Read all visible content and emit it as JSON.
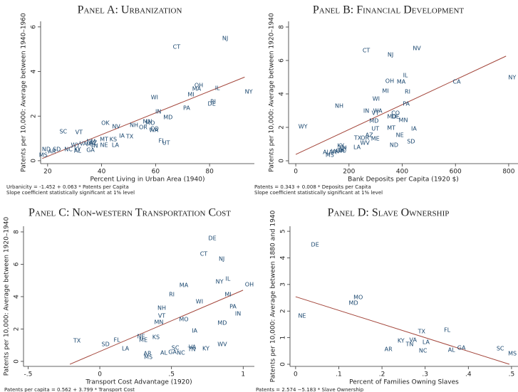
{
  "chart_data": [
    {
      "type": "scatter",
      "title": "Panel A: Urbanization",
      "xlabel": "Percent Living in Urban Area (1940)",
      "ylabel": "Patents per 10,000: Average between 1940–1960",
      "notes": [
        "Urbanicity = -1.452 + 0.063 * Patents per Capita",
        "Slope coefficient statistically significant at 1% level"
      ],
      "color": "#1a476f",
      "labels": [
        "NJ",
        "CT",
        "NY",
        "OH",
        "MA",
        "IL",
        "MI",
        "RI",
        "DE",
        "WI",
        "PA",
        "IN",
        "MD",
        "OK",
        "NV",
        "NH",
        "MN",
        "MO",
        "OR",
        "CO",
        "WA",
        "SC",
        "VT",
        "IA",
        "TX",
        "MT",
        "KS",
        "FL",
        "UT",
        "NM",
        "AZ",
        "NE",
        "LA",
        "WY",
        "VA",
        "TN",
        "ND",
        "SD",
        "NC",
        "KY",
        "ME",
        "AR",
        "AL",
        "GA",
        "MS"
      ],
      "x": [
        85.8,
        67.8,
        94.5,
        76,
        75.2,
        82.9,
        73.1,
        81.3,
        80.8,
        59.6,
        71.5,
        61,
        64.6,
        41.4,
        45.4,
        52,
        57,
        58,
        55.4,
        59.6,
        59.3,
        25.8,
        31.6,
        47.5,
        50.4,
        40.9,
        44.3,
        62.3,
        63.9,
        36.1,
        36.9,
        40.9,
        45.1,
        30.3,
        33.2,
        37.2,
        19.5,
        23.4,
        27.7,
        31.1,
        35.9,
        21.6,
        31.1,
        35.9,
        18.4
      ],
      "y": [
        5.49,
        5.1,
        3.09,
        3.38,
        3.22,
        3.25,
        2.97,
        2.65,
        2.55,
        2.84,
        2.36,
        2.2,
        1.95,
        1.69,
        1.53,
        1.59,
        1.75,
        1.69,
        1.5,
        1.44,
        1.37,
        1.31,
        1.28,
        1.12,
        1.08,
        0.96,
        0.96,
        0.89,
        0.8,
        0.86,
        0.8,
        0.7,
        0.7,
        0.7,
        0.77,
        0.67,
        0.51,
        0.51,
        0.51,
        0.51,
        0.73,
        0.41,
        0.45,
        0.48,
        0.26
      ],
      "fit": {
        "x": [
          18,
          93
        ],
        "y": [
          0.1,
          3.75
        ],
        "color": "#a3453a"
      },
      "xlim": [
        17.4,
        96.6
      ],
      "ylim": [
        -0.13,
        6.25
      ],
      "xticks": [
        20,
        40,
        60,
        80
      ],
      "yticks": [
        0,
        2,
        4,
        6
      ]
    },
    {
      "type": "scatter",
      "title": "Panel B: Financial Development",
      "xlabel": "Bank Deposits per Capita (1920 $)",
      "ylabel": "Patents per 10,000: Average between 1920–1940",
      "notes": [
        "Patents = 0.343 + 0.008 * Deposits per Capita",
        "Slope coefficient statistically significant at 1% level"
      ],
      "color": "#1a476f",
      "labels": [
        "NV",
        "CT",
        "NJ",
        "NY",
        "IL",
        "OH",
        "MA",
        "CA",
        "MI",
        "RI",
        "WI",
        "PA",
        "NH",
        "IN",
        "VT",
        "WA",
        "CO",
        "MO",
        "DE",
        "MN",
        "MD",
        "WY",
        "UT",
        "MT",
        "IA",
        "NE",
        "AZ",
        "OR",
        "TX",
        "ME",
        "SD",
        "WV",
        "ND",
        "LA",
        "KY",
        "SC",
        "NC",
        "VA",
        "AL",
        "AR",
        "GA",
        "MS",
        "TN"
      ],
      "x": [
        455,
        265,
        356,
        813,
        412,
        353,
        396,
        605,
        337,
        420,
        302,
        415,
        163,
        265,
        299,
        308,
        375,
        361,
        375,
        404,
        294,
        27,
        299,
        359,
        444,
        391,
        276,
        260,
        233,
        299,
        433,
        260,
        369,
        230,
        169,
        177,
        174,
        147,
        115,
        139,
        166,
        128,
        177
      ],
      "y": [
        6.72,
        6.6,
        6.34,
        4.98,
        5.11,
        4.77,
        4.72,
        4.72,
        4.17,
        4.13,
        3.7,
        3.4,
        3.28,
        2.98,
        2.85,
        2.98,
        2.85,
        2.64,
        2.64,
        2.43,
        2.38,
        2.04,
        1.91,
        1.96,
        1.91,
        1.53,
        1.53,
        1.36,
        1.36,
        1.32,
        1.15,
        1.06,
        0.94,
        0.81,
        0.89,
        0.68,
        0.6,
        0.55,
        0.51,
        0.51,
        0.6,
        0.34,
        0.77
      ],
      "fit": {
        "x": [
          0,
          790
        ],
        "y": [
          0.38,
          6.26
        ],
        "color": "#a3453a"
      },
      "xlim": [
        -27,
        835
      ],
      "ylim": [
        -0.17,
        8.34
      ],
      "xticks": [
        0,
        200,
        400,
        600,
        800
      ],
      "yticks": [
        0,
        2,
        4,
        6,
        8
      ]
    },
    {
      "type": "scatter",
      "title": "Panel C: Non-western Transportation Cost",
      "xlabel": "Transport Cost Advantage (1920)",
      "ylabel": "Patents per 10,000: Average between 1920–1940",
      "notes": [
        "Patents per capita = 0.562 + 3.799 * Transport Cost"
      ],
      "color": "#1a476f",
      "labels": [
        "DE",
        "CT",
        "NJ",
        "OH",
        "IL",
        "NY",
        "MA",
        "MI",
        "RI",
        "WI",
        "PA",
        "NH",
        "IN",
        "VT",
        "MN",
        "MO",
        "MD",
        "IA",
        "TX",
        "FL",
        "SD",
        "NE",
        "KS",
        "ME",
        "WV",
        "LA",
        "SC",
        "VA",
        "TN",
        "KY",
        "AR",
        "AL",
        "GA",
        "NC",
        "MS"
      ],
      "x": [
        0.785,
        0.725,
        0.85,
        1.043,
        0.894,
        0.835,
        0.586,
        0.894,
        0.502,
        0.695,
        0.929,
        0.432,
        0.964,
        0.432,
        0.412,
        0.586,
        0.854,
        0.661,
        -0.159,
        0.119,
        0.04,
        0.288,
        0.392,
        0.303,
        0.854,
        0.179,
        0.527,
        0.646,
        0.641,
        0.74,
        0.333,
        0.447,
        0.507,
        0.566,
        0.338
      ],
      "y": [
        7.6,
        6.64,
        6.33,
        4.75,
        5.1,
        4.92,
        4.7,
        4.13,
        4.13,
        3.69,
        3.38,
        3.3,
        2.95,
        2.81,
        2.42,
        2.59,
        2.37,
        1.89,
        1.27,
        1.32,
        1.05,
        1.54,
        1.49,
        1.32,
        1.05,
        0.79,
        0.84,
        0.88,
        0.75,
        0.79,
        0.48,
        0.53,
        0.57,
        0.53,
        0.26
      ],
      "fit": {
        "x": [
          -0.209,
          0.999
        ],
        "y": [
          -0.18,
          4.4
        ],
        "color": "#a3453a"
      },
      "xlim": [
        -0.532,
        1.078
      ],
      "ylim": [
        -0.31,
        8.35
      ],
      "xticks": [
        {
          "value": -0.5,
          "label": "-.5"
        },
        0,
        {
          "value": 0.5,
          "label": ".5"
        },
        1
      ],
      "yticks": [
        0,
        2,
        4,
        6,
        8
      ]
    },
    {
      "type": "scatter",
      "title": "Panel D: Slave Ownership",
      "xlabel": "Percent of Families Owning Slaves",
      "ylabel": "Patents per 10,000: Average between 1880 and 1940",
      "notes": [
        "Patents = 2.574 −5.183 * Slave Ownership"
      ],
      "color": "#1a476f",
      "labels": [
        "DE",
        "MO",
        "MD",
        "NE",
        "TX",
        "FL",
        "KY",
        "VA",
        "TN",
        "LA",
        "AR",
        "NC",
        "AL",
        "GA",
        "SC",
        "MS"
      ],
      "x": [
        0.045,
        0.145,
        0.134,
        0.015,
        0.292,
        0.351,
        0.244,
        0.272,
        0.264,
        0.302,
        0.215,
        0.295,
        0.361,
        0.384,
        0.474,
        0.502
      ],
      "y": [
        4.49,
        2.51,
        2.3,
        1.82,
        1.23,
        1.28,
        0.88,
        0.91,
        0.75,
        0.83,
        0.56,
        0.51,
        0.53,
        0.61,
        0.59,
        0.4
      ],
      "fit": {
        "x": [
          0,
          0.495
        ],
        "y": [
          2.54,
          0
        ],
        "color": "#a3453a"
      },
      "xlim": [
        -0.013,
        0.515
      ],
      "ylim": [
        -0.08,
        5.19
      ],
      "xticks": [
        0,
        {
          "value": 0.1,
          "label": ".1"
        },
        {
          "value": 0.2,
          "label": ".2"
        },
        {
          "value": 0.3,
          "label": ".3"
        },
        {
          "value": 0.4,
          "label": ".4"
        },
        {
          "value": 0.5,
          "label": ".5"
        }
      ],
      "yticks": [
        0,
        1,
        2,
        3,
        4,
        5
      ]
    }
  ]
}
